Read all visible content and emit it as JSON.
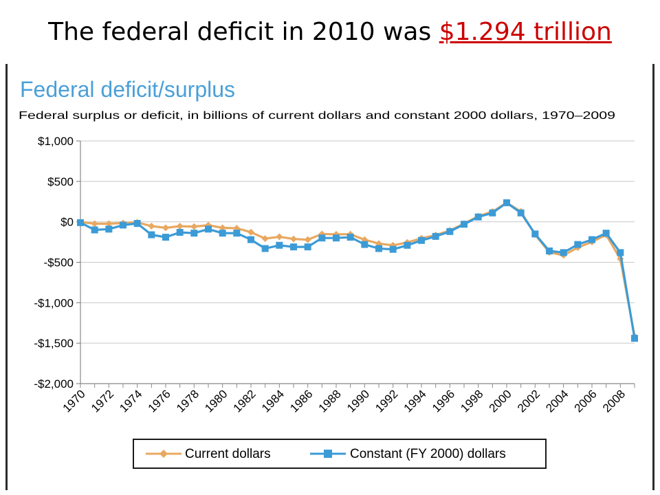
{
  "slide": {
    "title_prefix": "The federal deficit in 2010 was ",
    "title_link": "$1.294 trillion"
  },
  "colors": {
    "current": "#e8a860",
    "constant": "#3c9bd6",
    "title_accent": "#cc0000",
    "chart_title": "#4a9fd8",
    "grid": "#c8c8c8"
  },
  "chart_data": {
    "type": "line",
    "title": "Federal deficit/surplus",
    "subtitle": "Federal surplus or deficit, in billions of current dollars and constant 2000 dollars, 1970–2009",
    "xlabel": "",
    "ylabel": "",
    "ylim": [
      -2000,
      1000
    ],
    "yticks": [
      1000,
      500,
      0,
      -500,
      -1000,
      -1500,
      -2000
    ],
    "ytick_labels": [
      "$1,000",
      "$500",
      "$0",
      "-$500",
      "-$1,000",
      "-$1,500",
      "-$2,000"
    ],
    "x": [
      1970,
      1971,
      1972,
      1973,
      1974,
      1975,
      1976,
      1977,
      1978,
      1979,
      1980,
      1981,
      1982,
      1983,
      1984,
      1985,
      1986,
      1987,
      1988,
      1989,
      1990,
      1991,
      1992,
      1993,
      1994,
      1995,
      1996,
      1997,
      1998,
      1999,
      2000,
      2001,
      2002,
      2003,
      2004,
      2005,
      2006,
      2007,
      2008,
      2009
    ],
    "xtick_labels": [
      "1970",
      "1972",
      "1974",
      "1976",
      "1978",
      "1980",
      "1982",
      "1984",
      "1986",
      "1988",
      "1990",
      "1992",
      "1994",
      "1996",
      "1998",
      "2000",
      "2002",
      "2004",
      "2006",
      "2008"
    ],
    "grid": true,
    "legend_position": "bottom",
    "series": [
      {
        "name": "Current dollars",
        "marker": "diamond",
        "values": [
          -3,
          -23,
          -23,
          -15,
          -6,
          -53,
          -74,
          -54,
          -59,
          -41,
          -74,
          -79,
          -128,
          -208,
          -185,
          -212,
          -221,
          -150,
          -155,
          -153,
          -221,
          -269,
          -290,
          -255,
          -203,
          -164,
          -107,
          -22,
          69,
          126,
          236,
          128,
          -158,
          -378,
          -413,
          -318,
          -248,
          -161,
          -459,
          -1413
        ]
      },
      {
        "name": "Constant (FY 2000) dollars",
        "marker": "square",
        "values": [
          -10,
          -100,
          -90,
          -40,
          -20,
          -160,
          -190,
          -130,
          -140,
          -90,
          -140,
          -140,
          -220,
          -330,
          -290,
          -310,
          -310,
          -200,
          -200,
          -190,
          -280,
          -330,
          -340,
          -290,
          -230,
          -180,
          -120,
          -30,
          60,
          110,
          236,
          110,
          -150,
          -360,
          -380,
          -280,
          -220,
          -140,
          -380,
          -1440
        ]
      }
    ]
  }
}
